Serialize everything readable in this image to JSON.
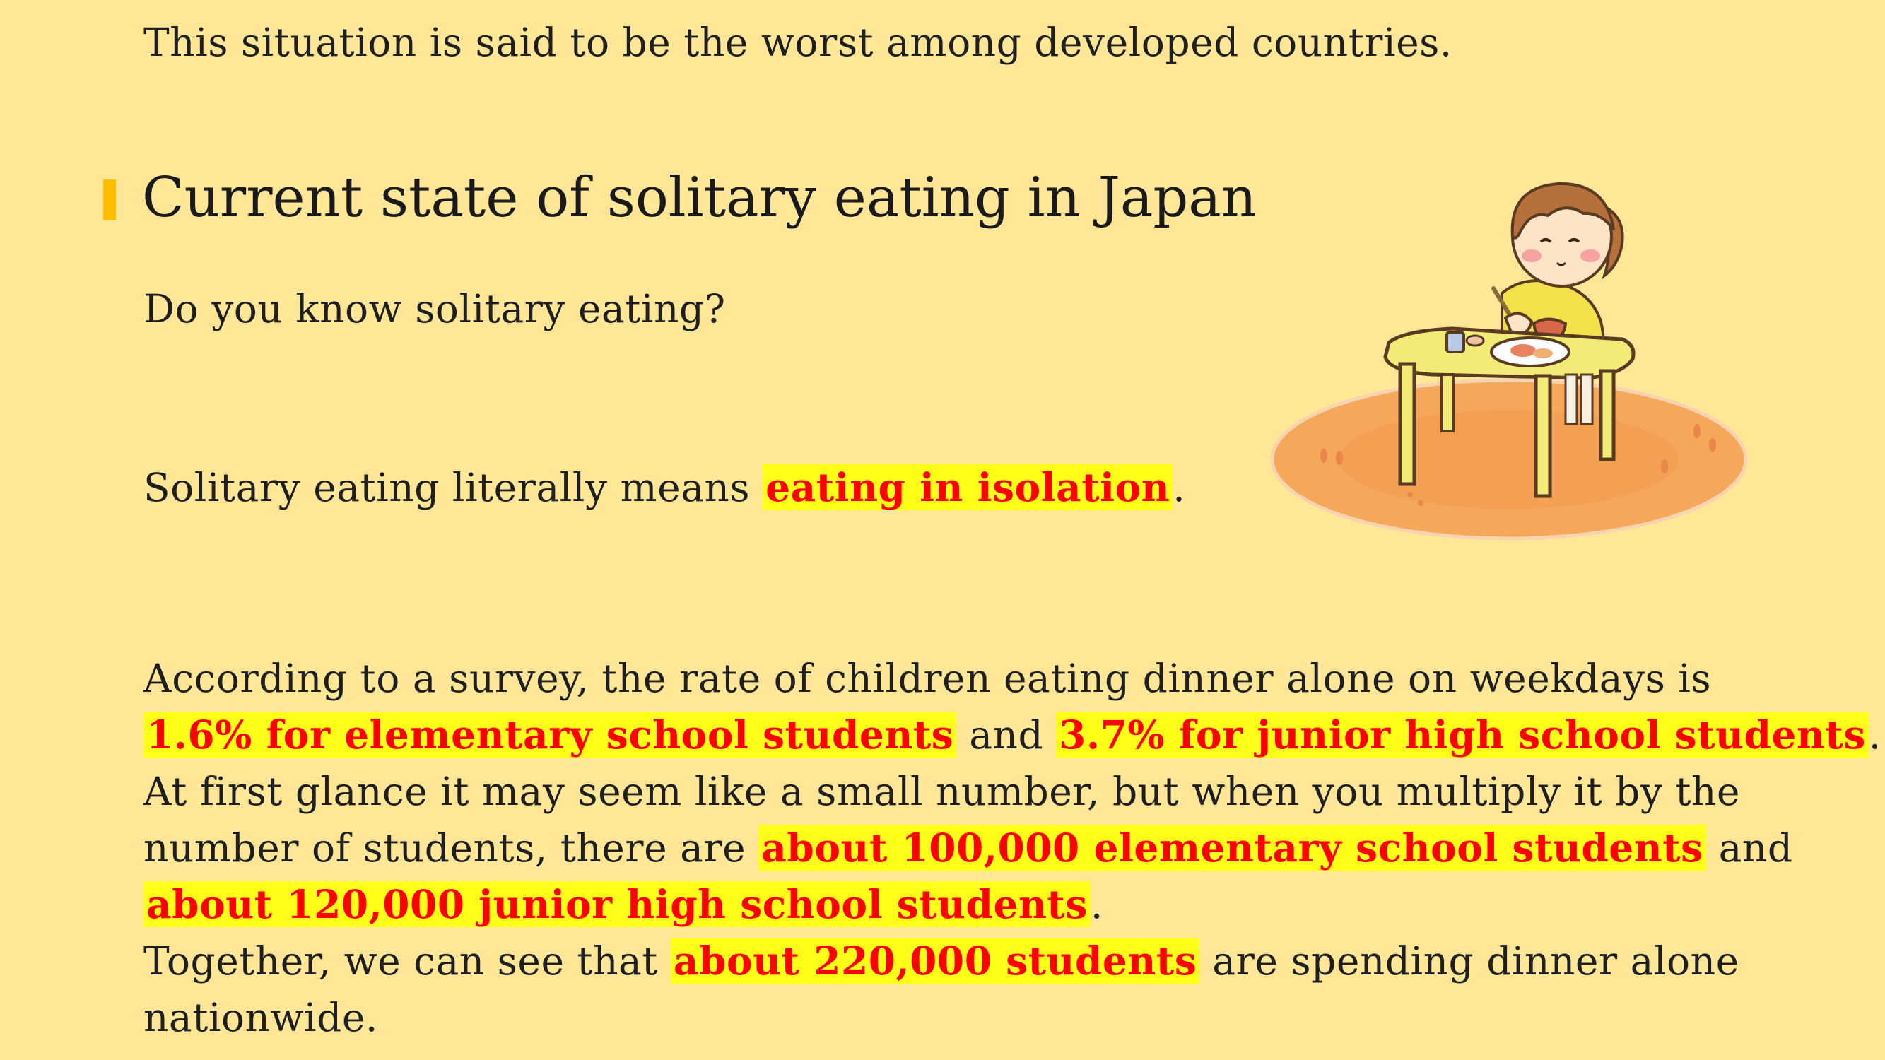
{
  "intro": {
    "text": "This situation is said to be the worst among developed countries."
  },
  "section": {
    "heading": "Current state of solitary eating in Japan",
    "question": "Do you know solitary eating?",
    "definition": {
      "pre": "Solitary eating literally means ",
      "highlight": "eating in isolation",
      "post": "."
    }
  },
  "survey": {
    "line1": "According to a survey, the rate of children eating dinner alone on weekdays is",
    "line2": {
      "hl1": "1.6% for elementary school students",
      "mid": " and ",
      "hl2": "3.7% for junior high school students",
      "post": "."
    },
    "line3": "At first glance it may seem like a small number, but when you multiply it by the",
    "line4": {
      "pre": "number of students, there are ",
      "hl": "about 100,000 elementary school students",
      "post": " and"
    },
    "line5": {
      "hl": "about 120,000 junior high school students",
      "post": "."
    },
    "line6": {
      "pre": "Together, we can see that ",
      "hl": "about 220,000 students",
      "post": " are spending dinner alone"
    },
    "line7": "nationwide."
  },
  "illustration": {
    "icon": "girl-eating-alone-illustration"
  },
  "colors": {
    "background": "#ffe797",
    "highlight_bg": "#ffff1a",
    "highlight_text": "#ff0000",
    "heading_bar": "#ffbf00"
  }
}
